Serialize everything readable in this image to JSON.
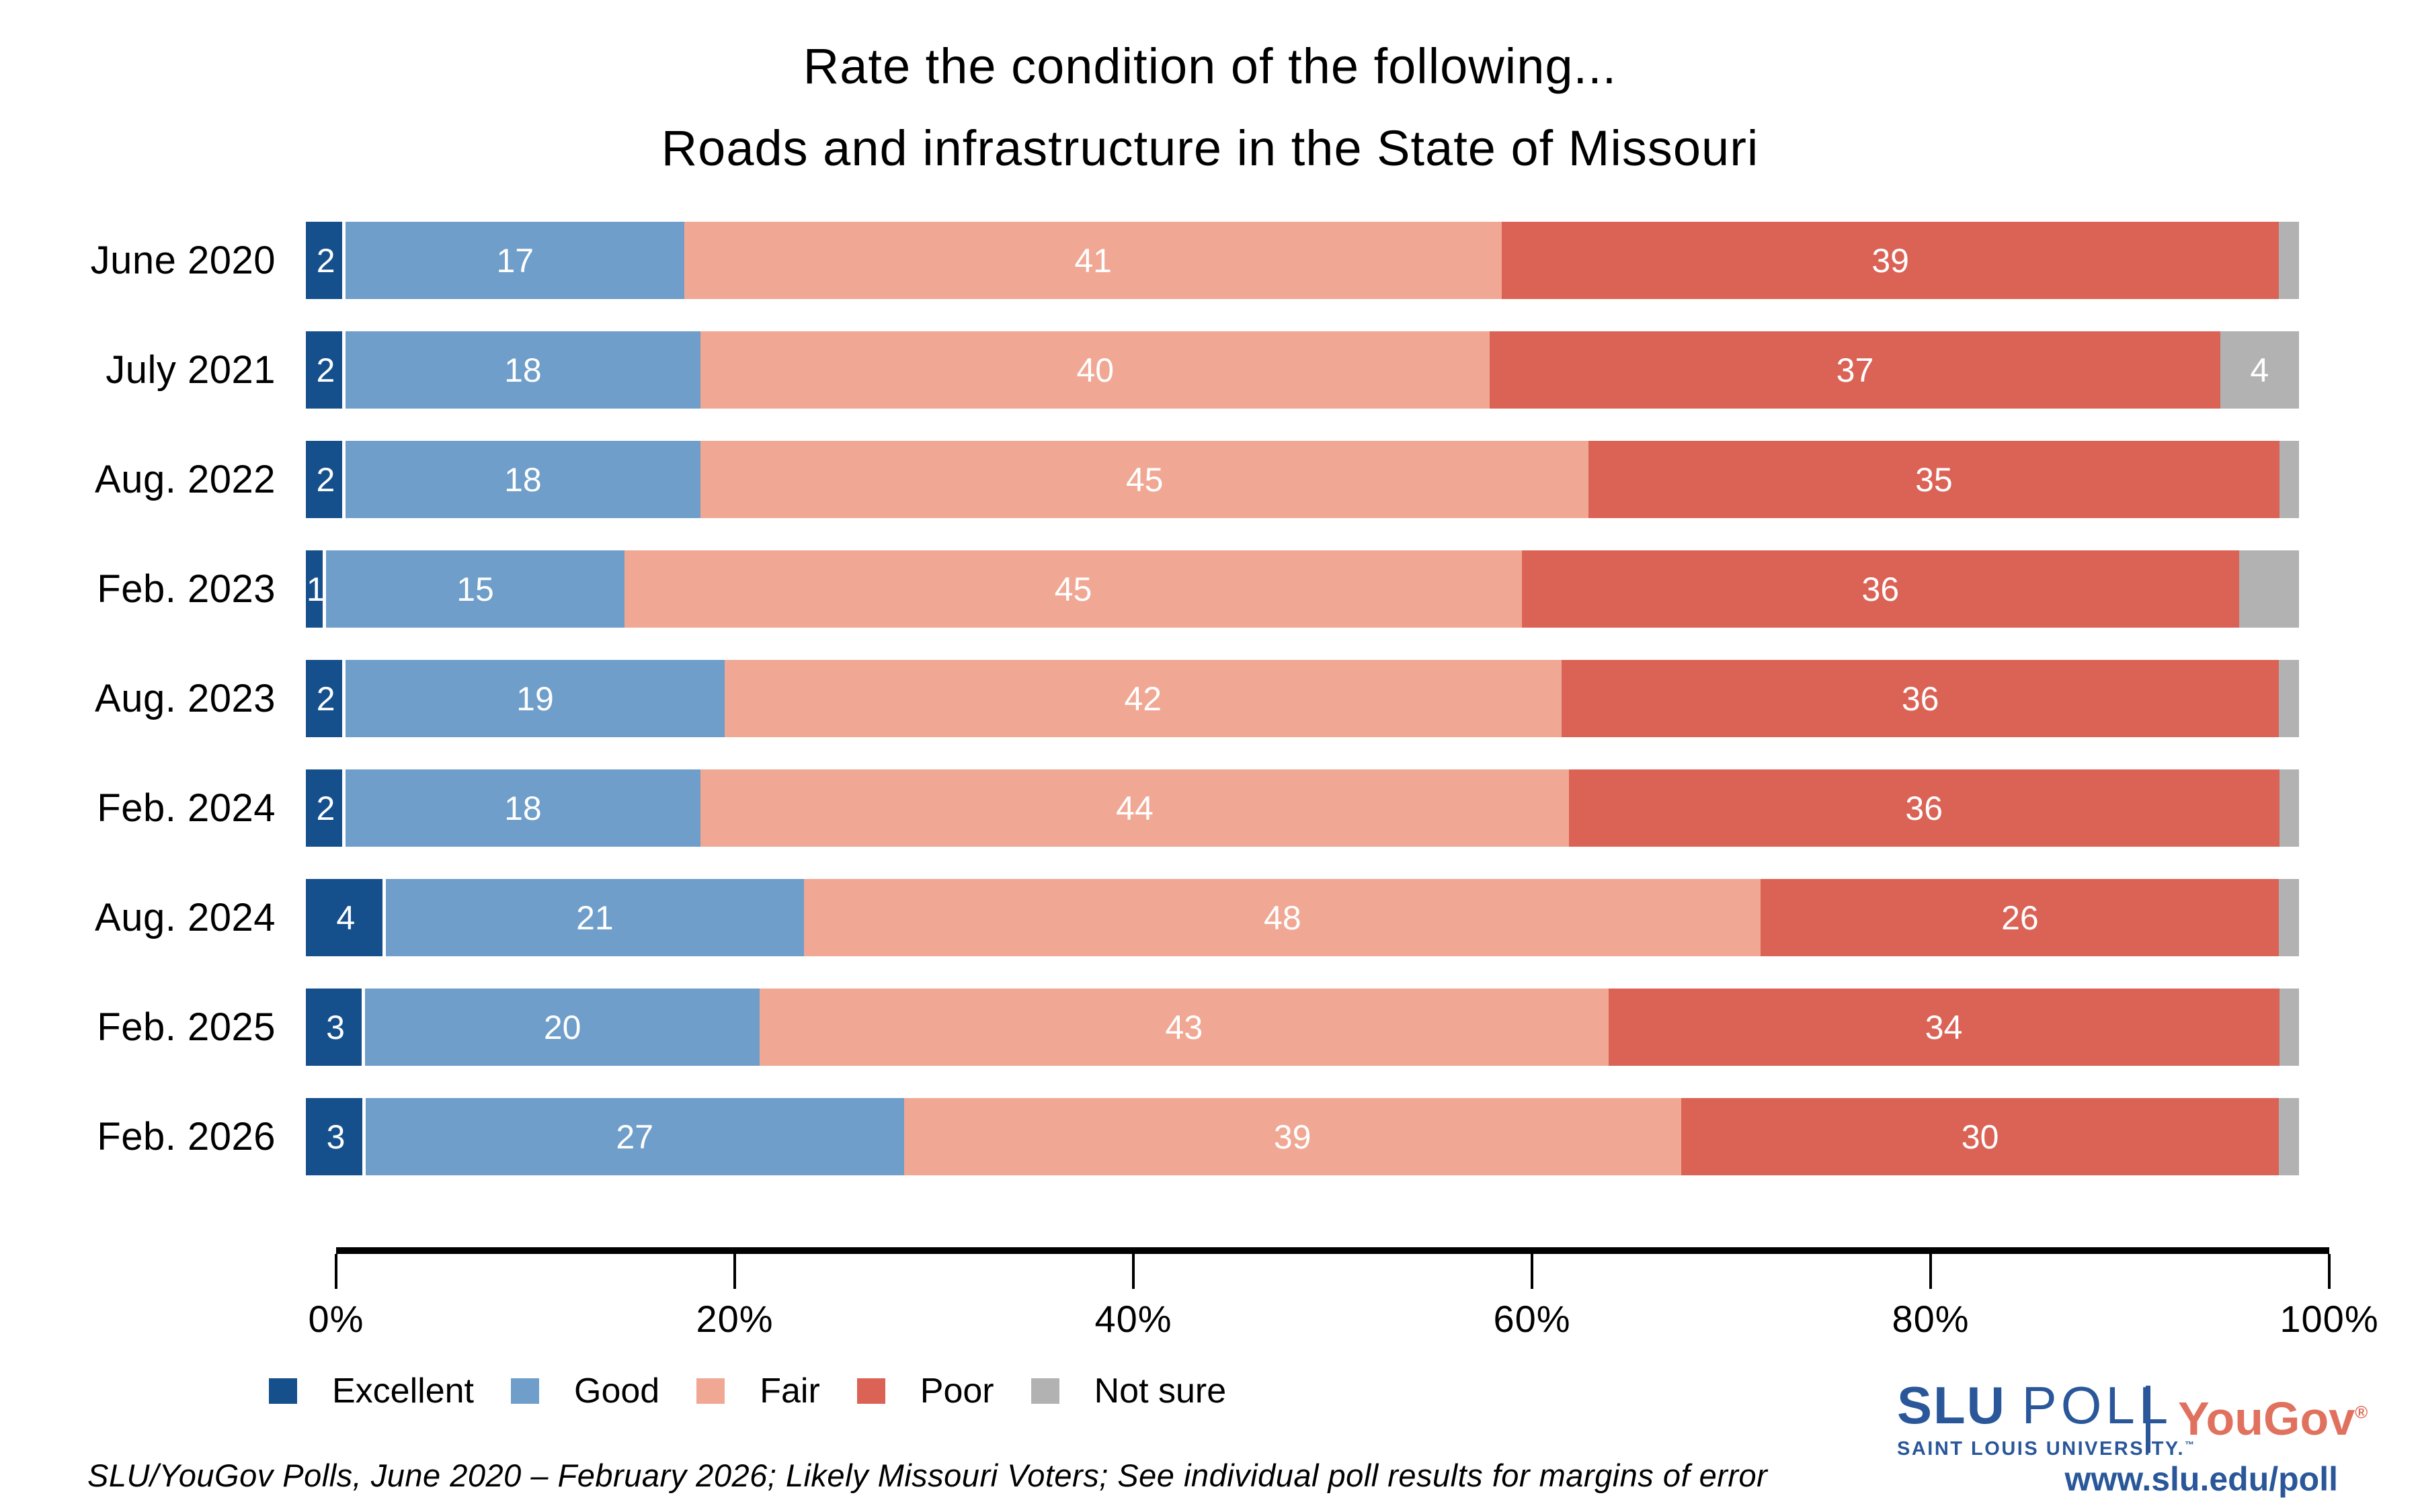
{
  "title": {
    "line1": "Rate the condition of the following...",
    "line2": "Roads and infrastructure in the State of Missouri"
  },
  "chart_data": {
    "type": "bar",
    "variant": "stacked-horizontal",
    "title": "Rate the condition of the following... Roads and infrastructure in the State of Missouri",
    "categories": [
      "June 2020",
      "July 2021",
      "Aug. 2022",
      "Feb. 2023",
      "Aug. 2023",
      "Feb. 2024",
      "Aug. 2024",
      "Feb. 2025",
      "Feb. 2026"
    ],
    "series": [
      {
        "name": "Excellent",
        "color": "#15508c",
        "values": [
          2,
          2,
          2,
          1,
          2,
          2,
          4,
          3,
          3
        ],
        "labels": [
          "2",
          "2",
          "2",
          "1",
          "2",
          "2",
          "4",
          "3",
          "3"
        ]
      },
      {
        "name": "Good",
        "color": "#6e9ec9",
        "values": [
          17,
          18,
          18,
          15,
          19,
          18,
          21,
          20,
          27
        ],
        "labels": [
          "17",
          "18",
          "18",
          "15",
          "19",
          "18",
          "21",
          "20",
          "27"
        ]
      },
      {
        "name": "Fair",
        "color": "#f0a894",
        "values": [
          41,
          40,
          45,
          45,
          42,
          44,
          48,
          43,
          39
        ],
        "labels": [
          "41",
          "40",
          "45",
          "45",
          "42",
          "44",
          "48",
          "43",
          "39"
        ]
      },
      {
        "name": "Poor",
        "color": "#db6356",
        "values": [
          39,
          37,
          35,
          36,
          36,
          36,
          26,
          34,
          30
        ],
        "labels": [
          "39",
          "37",
          "35",
          "36",
          "36",
          "36",
          "26",
          "34",
          "30"
        ]
      },
      {
        "name": "Not sure",
        "color": "#b2b2b2",
        "values": [
          1,
          4,
          1,
          3,
          1,
          1,
          1,
          1,
          1
        ],
        "labels": [
          "",
          "4",
          "",
          "",
          "",
          "",
          "",
          "",
          ""
        ]
      }
    ],
    "x_ticks": [
      "0%",
      "20%",
      "40%",
      "60%",
      "80%",
      "100%"
    ],
    "xlim": [
      0,
      100
    ],
    "grid": false,
    "legend_position": "bottom-left",
    "bar_label_color": "#ffffff"
  },
  "footer": {
    "source_note": "SLU/YouGov Polls, June 2020 – February 2026; Likely Missouri Voters; See individual poll results for margins of error"
  },
  "branding": {
    "slu_poll_line1_part1": "SLU",
    "slu_poll_line1_part2": "POLL",
    "slu_poll_line2": "SAINT LOUIS UNIVERSITY.",
    "tm_mark": "™",
    "yougov": "YouGov",
    "reg_mark": "®",
    "url": "www.slu.edu/poll",
    "slu_blue": "#2a5799",
    "yougov_coral": "#e0715e"
  }
}
